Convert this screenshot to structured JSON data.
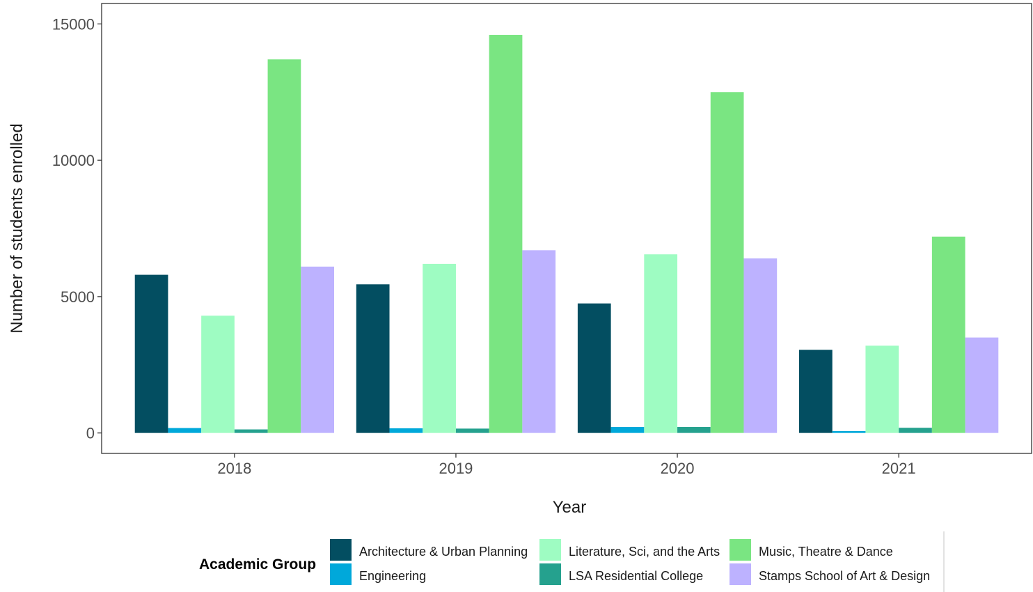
{
  "chart_data": {
    "type": "bar",
    "title": "",
    "xlabel": "Year",
    "ylabel": "Number of students enrolled",
    "categories": [
      "2018",
      "2019",
      "2020",
      "2021"
    ],
    "ylim": [
      -750,
      15750
    ],
    "yticks": [
      0,
      5000,
      10000,
      15000
    ],
    "grid": false,
    "legend": {
      "title": "Academic Group",
      "placement": "bottom"
    },
    "series": [
      {
        "name": "Architecture & Urban Planning",
        "color": "#034E61",
        "values": [
          5800,
          5450,
          4750,
          3050
        ]
      },
      {
        "name": "Engineering",
        "color": "#00A8DA",
        "values": [
          180,
          170,
          220,
          70
        ]
      },
      {
        "name": "Literature, Sci, and the Arts",
        "color": "#9EFCC2",
        "values": [
          4300,
          6200,
          6550,
          3200
        ]
      },
      {
        "name": "LSA Residential College",
        "color": "#25A18E",
        "values": [
          130,
          160,
          220,
          190
        ]
      },
      {
        "name": "Music, Theatre & Dance",
        "color": "#7AE582",
        "values": [
          13700,
          14600,
          12500,
          7200
        ]
      },
      {
        "name": "Stamps School of Art & Design",
        "color": "#BDB2FF",
        "values": [
          6100,
          6700,
          6400,
          3500
        ]
      }
    ]
  }
}
